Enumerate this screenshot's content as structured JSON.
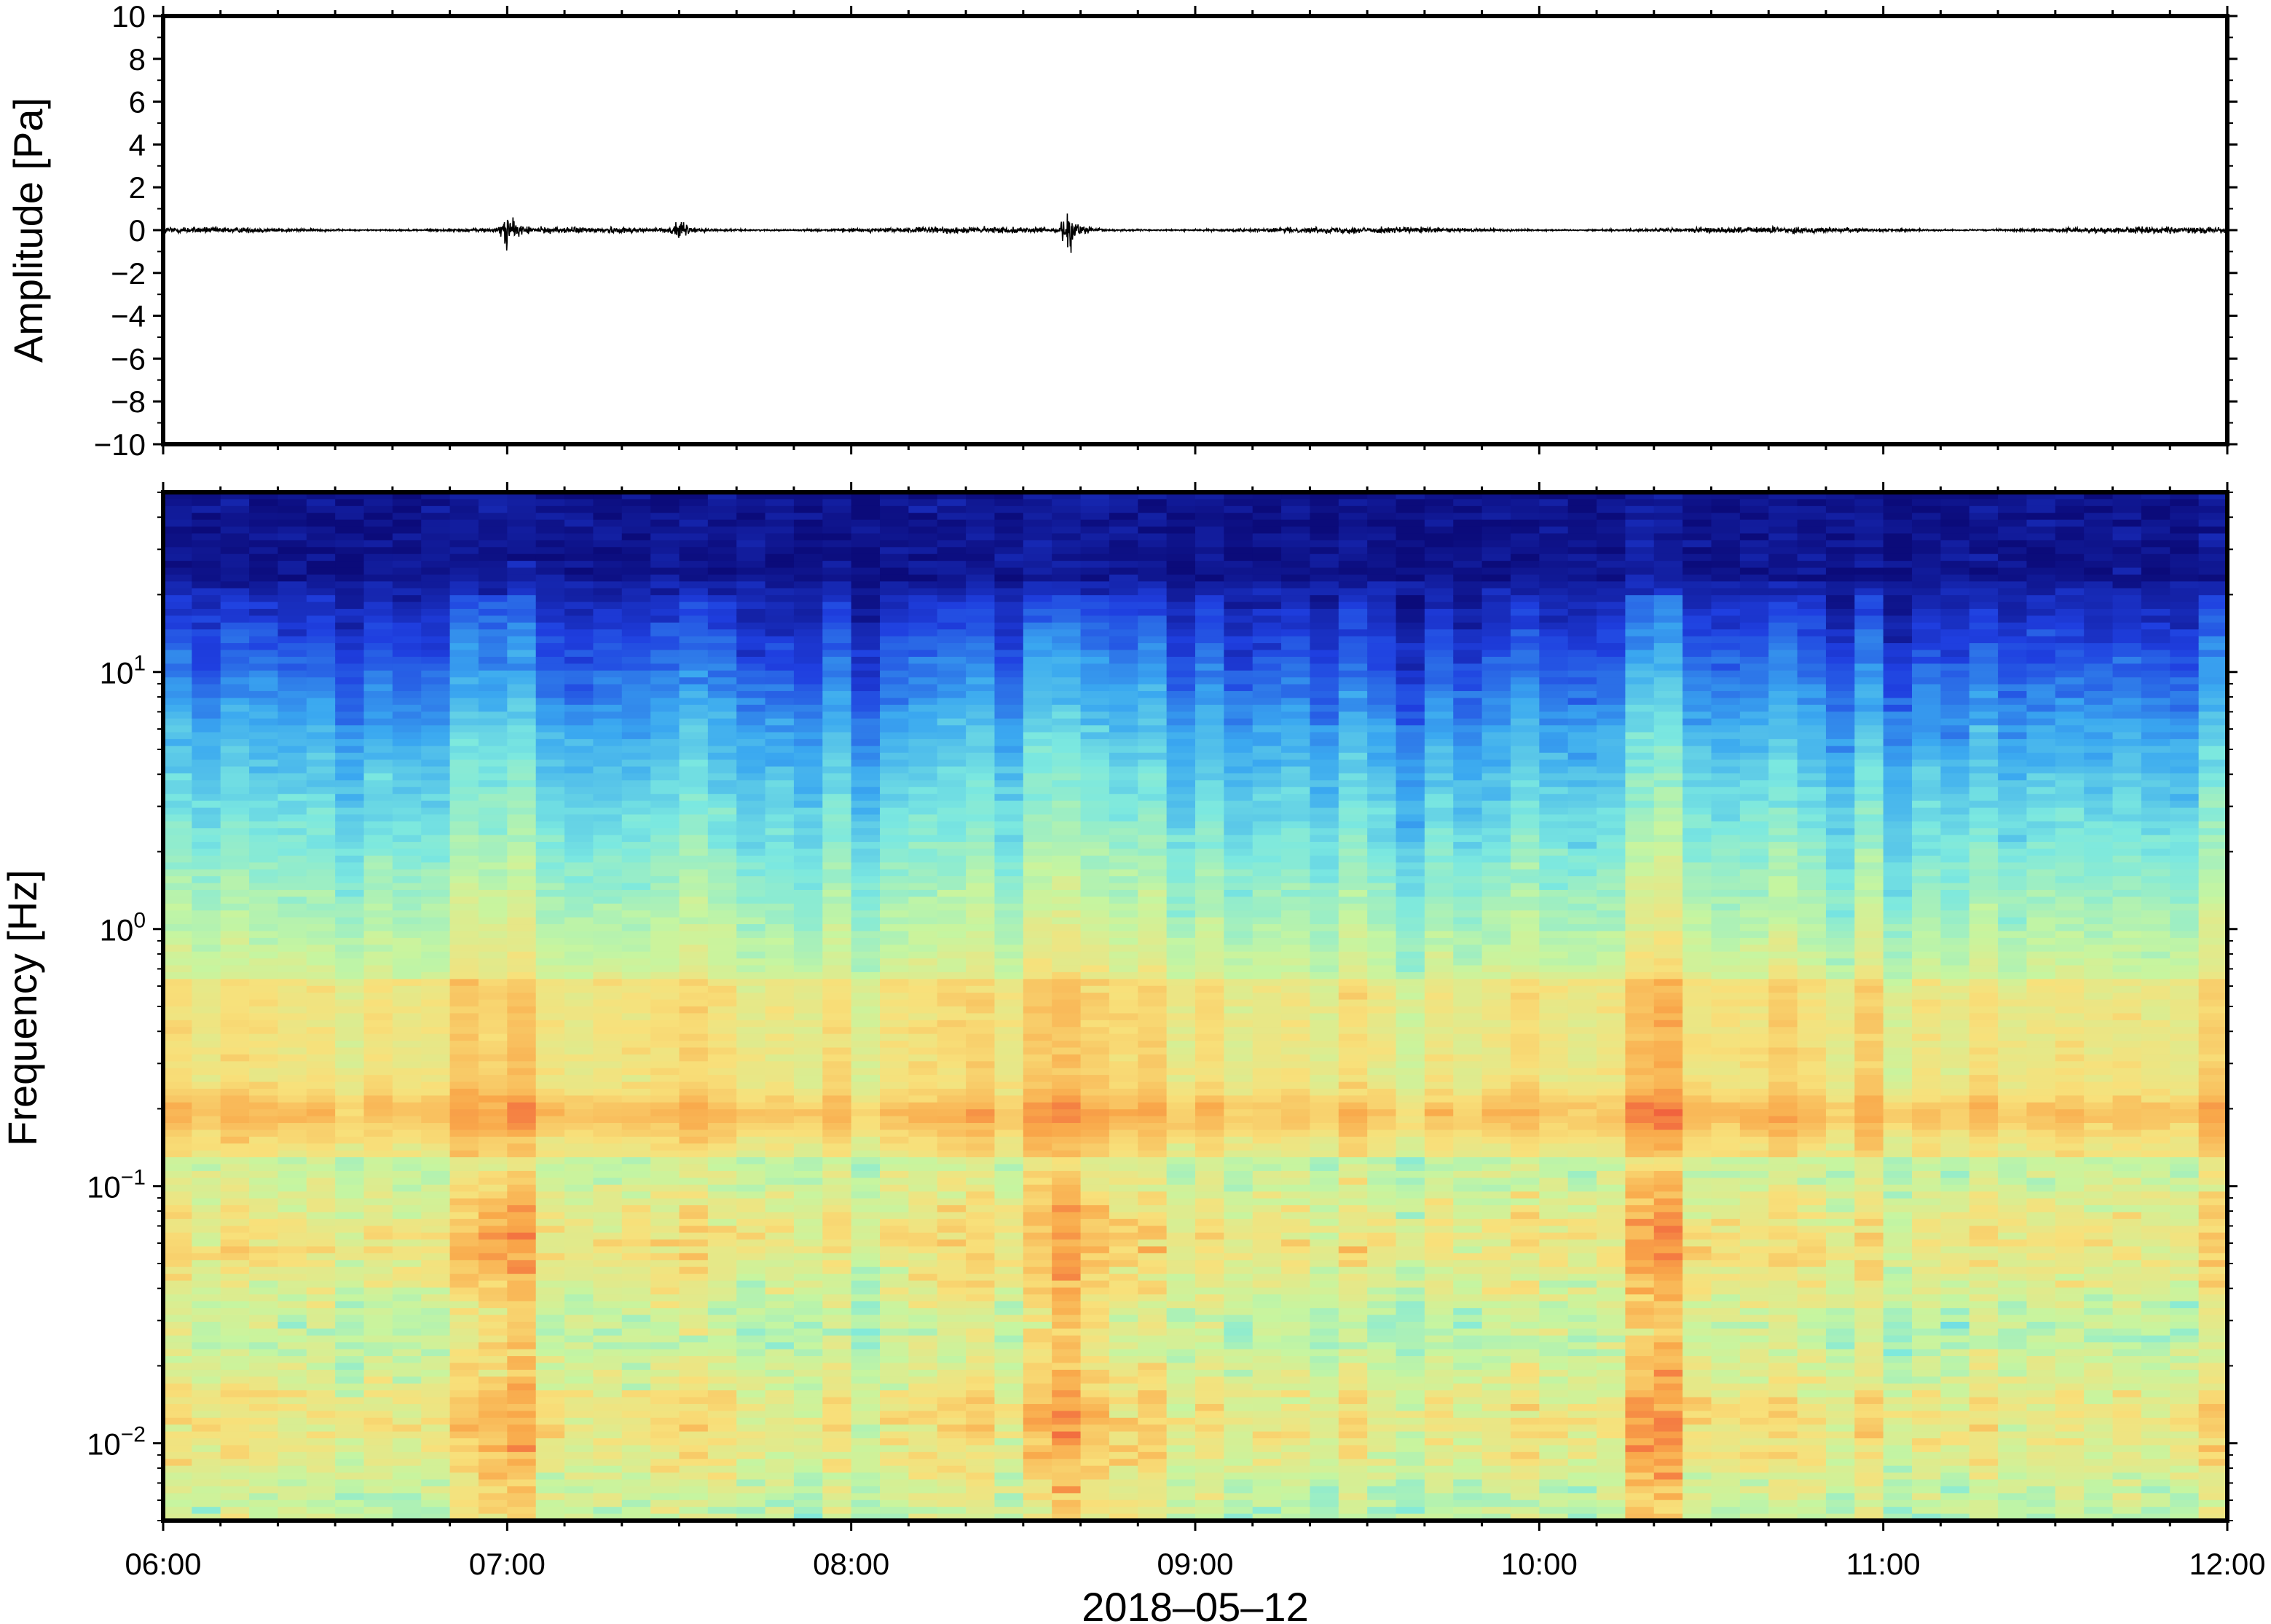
{
  "chart_data": [
    {
      "type": "line",
      "title": "",
      "ylabel": "Amplitude [Pa]",
      "ylim": [
        -10,
        10
      ],
      "yticks": [
        10,
        8,
        6,
        4,
        2,
        0,
        -2,
        -4,
        -6,
        -8,
        -10
      ],
      "ytick_labels": [
        "10",
        "8",
        "6",
        "4",
        "2",
        "0",
        "−2",
        "−4",
        "−6",
        "−8",
        "−10"
      ],
      "xlim": [
        "06:00",
        "12:00"
      ],
      "series": [
        {
          "color": "#000000",
          "noise_amplitude": 0.25,
          "events": [
            {
              "time": "07:00",
              "amplitude": 1.2
            },
            {
              "time": "07:30",
              "amplitude": 0.7
            },
            {
              "time": "08:38",
              "amplitude": 1.5
            }
          ]
        }
      ]
    },
    {
      "type": "heatmap",
      "title": "",
      "xlabel": "2018–05–12",
      "ylabel": "Frequency [Hz]",
      "yscale": "log",
      "ylim": [
        0.005,
        50
      ],
      "yticks": [
        {
          "value": 10,
          "base": "10",
          "exp": "1"
        },
        {
          "value": 1,
          "base": "10",
          "exp": "0"
        },
        {
          "value": 0.1,
          "base": "10",
          "exp": "−1"
        },
        {
          "value": 0.01,
          "base": "10",
          "exp": "−2"
        }
      ],
      "xlim": [
        "06:00",
        "12:00"
      ],
      "xtick_labels": [
        "06:00",
        "07:00",
        "08:00",
        "09:00",
        "10:00",
        "11:00",
        "12:00"
      ],
      "colormap": [
        "#0b0b7a",
        "#1f3fe0",
        "#3aa8f0",
        "#7be8e0",
        "#c6f5a0",
        "#f8e07a",
        "#f9a84a",
        "#ee4a3a",
        "#f08080"
      ],
      "bright_columns": [
        "07:00",
        "08:38",
        "10:20"
      ]
    }
  ]
}
